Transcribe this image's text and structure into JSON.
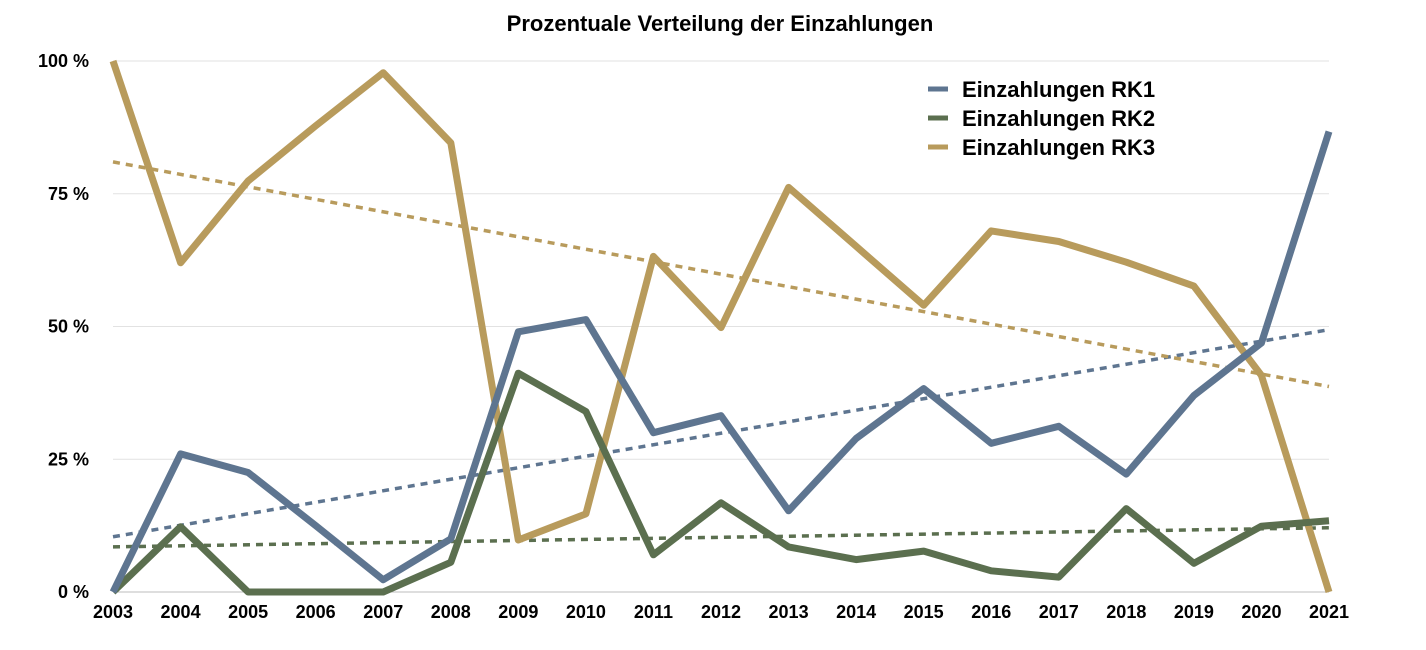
{
  "chart_data": {
    "type": "line",
    "title": "Prozentuale Verteilung der Einzahlungen",
    "xlabel": "",
    "ylabel": "",
    "ylim": [
      0,
      100
    ],
    "grid": true,
    "legend_position": "top-right",
    "categories": [
      "2003",
      "2004",
      "2005",
      "2006",
      "2007",
      "2008",
      "2009",
      "2010",
      "2011",
      "2012",
      "2013",
      "2014",
      "2015",
      "2016",
      "2017",
      "2018",
      "2019",
      "2020",
      "2021"
    ],
    "y_ticks": [
      {
        "value": 0,
        "label": "0 %"
      },
      {
        "value": 25,
        "label": "25 %"
      },
      {
        "value": 50,
        "label": "50 %"
      },
      {
        "value": 75,
        "label": "75 %"
      },
      {
        "value": 100,
        "label": "100 %"
      }
    ],
    "series": [
      {
        "name": "Einzahlungen RK1",
        "color": "#5e7590",
        "values": [
          0,
          26,
          22.5,
          12.5,
          2.3,
          10,
          49,
          51.3,
          30,
          33.2,
          15.3,
          28.9,
          38.3,
          28,
          31.2,
          22.2,
          37,
          46.9,
          86.7
        ],
        "trend": [
          10.4,
          49.4
        ]
      },
      {
        "name": "Einzahlungen RK2",
        "color": "#5b6f4f",
        "values": [
          0,
          12.3,
          0,
          0,
          0,
          5.6,
          41.2,
          34,
          7,
          16.8,
          8.5,
          6.1,
          7.7,
          4,
          2.8,
          15.7,
          5.4,
          12.4,
          13.4
        ],
        "trend": [
          8.5,
          12.1
        ]
      },
      {
        "name": "Einzahlungen RK3",
        "color": "#b89b5c",
        "values": [
          100,
          62,
          77.4,
          87.8,
          97.8,
          84.6,
          9.8,
          14.7,
          63.2,
          49.8,
          76.2,
          65.1,
          54,
          68,
          66,
          62.1,
          57.6,
          40.8,
          0
        ],
        "trend": [
          81,
          38.7
        ]
      }
    ]
  }
}
